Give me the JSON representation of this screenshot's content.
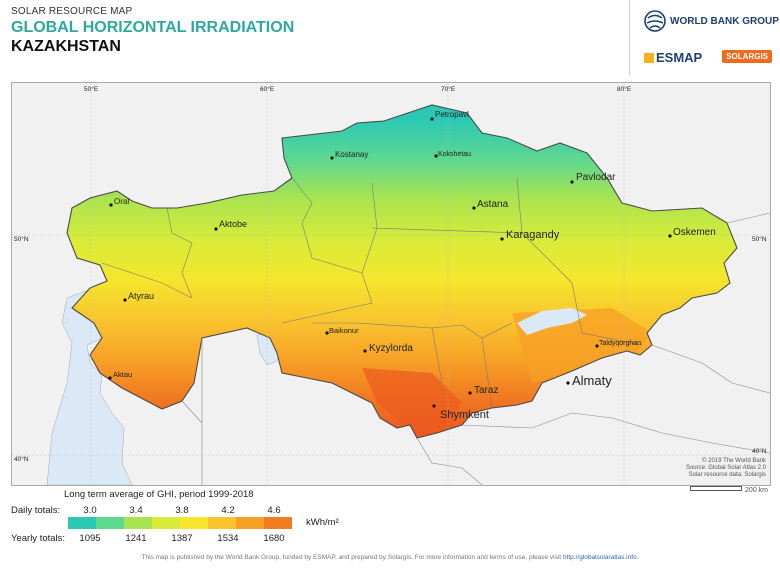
{
  "header": {
    "kicker": "SOLAR RESOURCE MAP",
    "title": "GLOBAL HORIZONTAL IRRADIATION",
    "country": "KAZAKHSTAN"
  },
  "logos": {
    "world_bank": "WORLD BANK GROUP",
    "esmap": "ESMAP",
    "solargis": "SOLARGIS"
  },
  "map": {
    "graticule": [
      "50°E",
      "60°E",
      "70°E",
      "80°E",
      "50°N",
      "50°N",
      "40°N",
      "40°N"
    ],
    "cities": [
      "Petropavl",
      "Kostanay",
      "Kokshetau",
      "Pavlodar",
      "Oral",
      "Astana",
      "Aktobe",
      "Karagandy",
      "Oskemen",
      "Atyrau",
      "Baikonur",
      "Kyzylorda",
      "Taldyqorghan",
      "Aktau",
      "Taraz",
      "Almaty",
      "Shymkent"
    ],
    "copyright": [
      "© 2019 The World Bank",
      "Source: Global Solar Atlas 2.0",
      "Solar resource data: Solargis"
    ],
    "scale": "200 km",
    "colors": {
      "background": "#f1f1f1",
      "water": "#dbe9f6",
      "country_border": "#5a5a5a",
      "region_border": "#7a7a7a"
    }
  },
  "legend": {
    "title": "Long term average of GHI, period 1999-2018",
    "daily_label": "Daily totals:",
    "daily_values": [
      "3.0",
      "3.4",
      "3.8",
      "4.2",
      "4.6"
    ],
    "yearly_label": "Yearly totals:",
    "yearly_values": [
      "1095",
      "1241",
      "1387",
      "1534",
      "1680"
    ],
    "unit": "kWh/m²",
    "colors": [
      "#2bc9b4",
      "#5fd88f",
      "#a9e34f",
      "#d7ec3a",
      "#f5e62c",
      "#f9c42f",
      "#f7a026",
      "#f17c22",
      "#ec5a1f"
    ]
  },
  "footer": {
    "text": "This map is published by the World Bank Group, funded by ESMAP, and prepared by Solargis. For more information and terms of use, please visit",
    "link": "http://globalsolaratlas.info."
  }
}
